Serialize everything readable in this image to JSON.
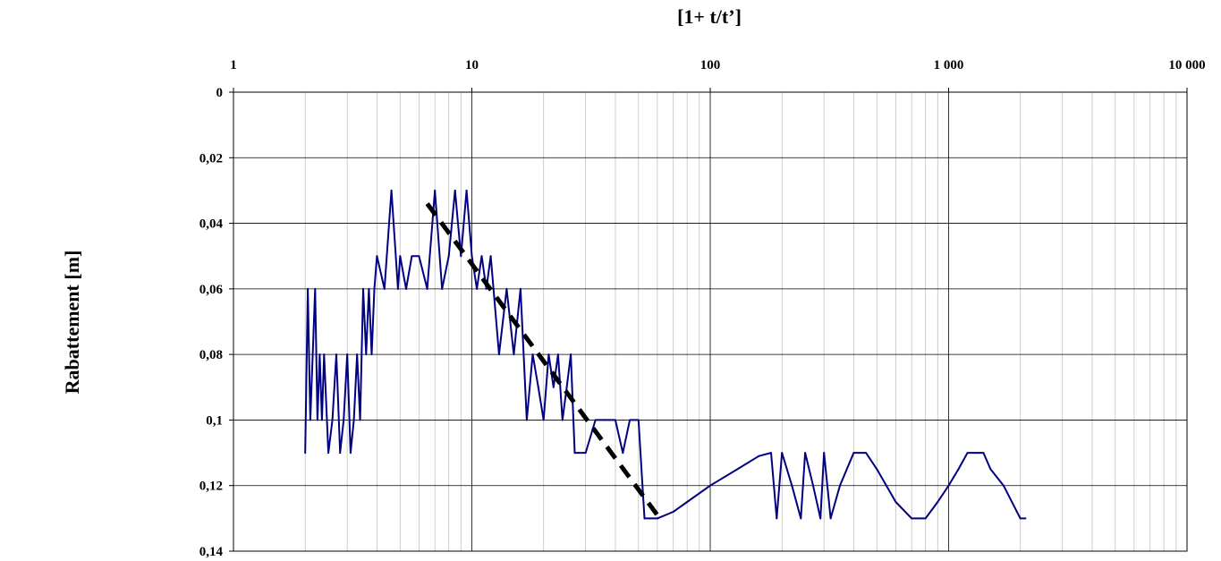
{
  "chart_data": {
    "type": "line",
    "title": "",
    "xlabel": "[1+ t/t’]",
    "ylabel": "Rabattement [m]",
    "x_scale": "log",
    "y_inverted": true,
    "xlim": [
      1,
      10000
    ],
    "ylim": [
      0,
      0.14
    ],
    "grid": true,
    "x_ticks": [
      "1",
      "10",
      "100",
      "1 000",
      "10 000"
    ],
    "y_ticks": [
      "0",
      "0,02",
      "0,04",
      "0,06",
      "0,08",
      "0,1",
      "0,12",
      "0,14"
    ],
    "colors": {
      "series": "#000080",
      "fit": "#000000",
      "grid": "#c0c0c0",
      "major_grid": "#000000"
    },
    "series": [
      {
        "style": "solid",
        "x": [
          2.0,
          2.05,
          2.1,
          2.15,
          2.2,
          2.25,
          2.3,
          2.35,
          2.4,
          2.5,
          2.6,
          2.7,
          2.8,
          2.9,
          3.0,
          3.1,
          3.2,
          3.3,
          3.4,
          3.5,
          3.6,
          3.7,
          3.8,
          3.9,
          4.0,
          4.3,
          4.6,
          4.9,
          5.0,
          5.3,
          5.6,
          6.0,
          6.5,
          7.0,
          7.5,
          8.0,
          8.5,
          9.0,
          9.5,
          10.0,
          10.5,
          11.0,
          11.5,
          12.0,
          13.0,
          14.0,
          15.0,
          16.0,
          17.0,
          18.0,
          19.0,
          20.0,
          21.0,
          22.0,
          23.0,
          24.0,
          25.0,
          26.0,
          27.0,
          28.0,
          30.0,
          33.0,
          36.0,
          40.0,
          43.0,
          46.0,
          50.0,
          53.0,
          56.0,
          60.0,
          70.0,
          80.0,
          100.0,
          130.0,
          160.0,
          180.0,
          190.0,
          200.0,
          220.0,
          240.0,
          250.0,
          270.0,
          290.0,
          300.0,
          320.0,
          350.0,
          400.0,
          450.0,
          500.0,
          600.0,
          700.0,
          800.0,
          900.0,
          1000.0,
          1100.0,
          1200.0,
          1300.0,
          1400.0,
          1500.0,
          1700.0,
          2000.0,
          2100.0
        ],
        "y": [
          0.11,
          0.06,
          0.1,
          0.08,
          0.06,
          0.1,
          0.08,
          0.1,
          0.08,
          0.11,
          0.1,
          0.08,
          0.11,
          0.1,
          0.08,
          0.11,
          0.1,
          0.08,
          0.1,
          0.06,
          0.08,
          0.06,
          0.08,
          0.06,
          0.05,
          0.06,
          0.03,
          0.06,
          0.05,
          0.06,
          0.05,
          0.05,
          0.06,
          0.03,
          0.06,
          0.05,
          0.03,
          0.05,
          0.03,
          0.05,
          0.06,
          0.05,
          0.06,
          0.05,
          0.08,
          0.06,
          0.08,
          0.06,
          0.1,
          0.08,
          0.09,
          0.1,
          0.08,
          0.09,
          0.08,
          0.1,
          0.09,
          0.08,
          0.11,
          0.11,
          0.11,
          0.1,
          0.1,
          0.1,
          0.11,
          0.1,
          0.1,
          0.13,
          0.13,
          0.13,
          0.128,
          0.125,
          0.12,
          0.115,
          0.111,
          0.11,
          0.13,
          0.11,
          0.12,
          0.13,
          0.11,
          0.12,
          0.13,
          0.11,
          0.13,
          0.12,
          0.11,
          0.11,
          0.115,
          0.125,
          0.13,
          0.13,
          0.125,
          0.12,
          0.115,
          0.11,
          0.11,
          0.11,
          0.115,
          0.12,
          0.13,
          0.13
        ]
      },
      {
        "style": "dashed",
        "x": [
          6.5,
          60.0
        ],
        "y": [
          0.034,
          0.129
        ]
      }
    ]
  }
}
